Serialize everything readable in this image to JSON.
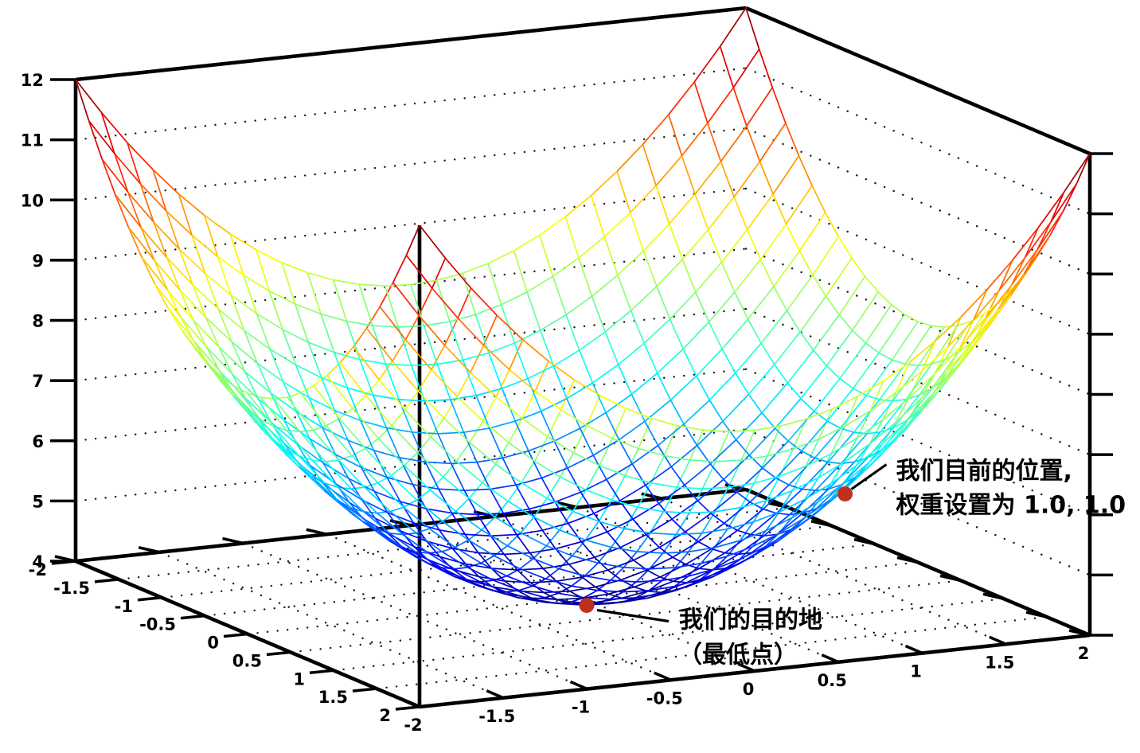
{
  "figure": {
    "background": "#ffffff"
  },
  "chart_data": {
    "type": "surface3d",
    "render_style": "wireframe",
    "title": "",
    "surface": {
      "formula_display": "z = x^2 + y^2 + 4",
      "formula_js": "x*x + y*y + 4",
      "mesh_segments": 26,
      "colormap": "jet"
    },
    "axes": {
      "x": {
        "range": [
          -2,
          2
        ],
        "tick_labels": [
          "-2",
          "-1.5",
          "-1",
          "-0.5",
          "0",
          "0.5",
          "1",
          "1.5",
          "2"
        ]
      },
      "y": {
        "range": [
          -2,
          2
        ],
        "tick_labels": [
          "-2",
          "-1.5",
          "-1",
          "-0.5",
          "0",
          "0.5",
          "1",
          "1.5",
          "2"
        ]
      },
      "z": {
        "range": [
          4,
          12
        ],
        "tick_labels": [
          "4",
          "5",
          "6",
          "7",
          "8",
          "9",
          "10",
          "11",
          "12"
        ]
      }
    },
    "grid": {
      "style": "dotted",
      "color": "#1a1a1a",
      "on": true
    },
    "axis_color": "#000000",
    "annotations": [
      {
        "name": "current-position",
        "point": {
          "x": 1.0,
          "y": 1.0,
          "z": 6.0
        },
        "lines": [
          "我们目前的位置,",
          "权重设置为 1.0, 1.0"
        ],
        "marker_color": "#c0301e",
        "text_color": "#000000"
      },
      {
        "name": "destination",
        "point": {
          "x": 0.0,
          "y": 0.0,
          "z": 4.0
        },
        "lines": [
          "我们的目的地",
          "（最低点）"
        ],
        "marker_color": "#c0301e",
        "text_color": "#000000"
      }
    ]
  }
}
